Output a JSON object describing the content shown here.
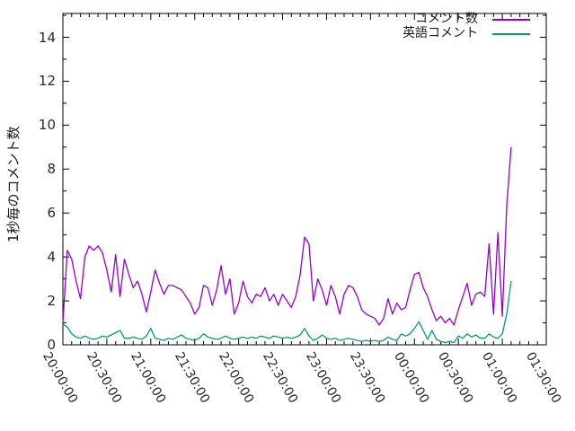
{
  "chart_data": {
    "type": "line",
    "title": "",
    "xlabel": "",
    "ylabel": "1秒毎のコメント数",
    "ylim": [
      0,
      15
    ],
    "yticks": [
      0,
      2,
      4,
      6,
      8,
      10,
      12,
      14
    ],
    "xtick_labels": [
      "20:00:00",
      "20:30:00",
      "21:00:00",
      "21:30:00",
      "22:00:00",
      "22:30:00",
      "23:00:00",
      "23:30:00",
      "00:00:00",
      "00:30:00",
      "01:00:00",
      "01:30:00"
    ],
    "grid": false,
    "legend_position": "top-right-inside",
    "background_color": "#ffffff",
    "axis_color": "#000000",
    "x_start": "20:00:00",
    "x_step_minutes": 3,
    "x_times": [
      "20:00",
      "20:03",
      "20:06",
      "20:09",
      "20:12",
      "20:15",
      "20:18",
      "20:21",
      "20:24",
      "20:27",
      "20:30",
      "20:33",
      "20:36",
      "20:39",
      "20:42",
      "20:45",
      "20:48",
      "20:51",
      "20:54",
      "20:57",
      "21:00",
      "21:03",
      "21:06",
      "21:09",
      "21:12",
      "21:15",
      "21:18",
      "21:21",
      "21:24",
      "21:27",
      "21:30",
      "21:33",
      "21:36",
      "21:39",
      "21:42",
      "21:45",
      "21:48",
      "21:51",
      "21:54",
      "21:57",
      "22:00",
      "22:03",
      "22:06",
      "22:09",
      "22:12",
      "22:15",
      "22:18",
      "22:21",
      "22:24",
      "22:27",
      "22:30",
      "22:33",
      "22:36",
      "22:39",
      "22:42",
      "22:45",
      "22:48",
      "22:51",
      "22:54",
      "22:57",
      "23:00",
      "23:03",
      "23:06",
      "23:09",
      "23:12",
      "23:15",
      "23:18",
      "23:21",
      "23:24",
      "23:27",
      "23:30",
      "23:33",
      "23:36",
      "23:39",
      "23:42",
      "23:45",
      "23:48",
      "23:51",
      "23:54",
      "23:57",
      "00:00",
      "00:03",
      "00:06",
      "00:09",
      "00:12",
      "00:15",
      "00:18",
      "00:21",
      "00:24",
      "00:27",
      "00:30",
      "00:33",
      "00:36",
      "00:39",
      "00:42",
      "00:45",
      "00:48",
      "00:51",
      "00:54",
      "00:57",
      "01:00",
      "01:03",
      "01:06"
    ],
    "series": [
      {
        "name": "コメント数",
        "color": "#9400d3",
        "values": [
          1.0,
          4.3,
          3.9,
          2.9,
          2.1,
          4.0,
          4.5,
          4.3,
          4.5,
          4.2,
          3.4,
          2.4,
          4.1,
          2.2,
          3.9,
          3.2,
          2.6,
          2.9,
          2.3,
          1.5,
          2.4,
          3.4,
          2.8,
          2.3,
          2.7,
          2.7,
          2.6,
          2.5,
          2.2,
          1.9,
          1.4,
          1.7,
          2.7,
          2.6,
          1.8,
          2.5,
          3.6,
          2.3,
          3.0,
          1.4,
          1.9,
          2.9,
          2.2,
          1.9,
          2.3,
          2.2,
          2.6,
          2.0,
          2.3,
          1.8,
          2.3,
          2.0,
          1.7,
          2.2,
          3.2,
          4.9,
          4.6,
          2.0,
          3.0,
          2.5,
          1.8,
          2.7,
          2.2,
          1.4,
          2.3,
          2.7,
          2.6,
          2.2,
          1.6,
          1.4,
          1.3,
          1.2,
          0.9,
          1.2,
          2.1,
          1.4,
          1.9,
          1.6,
          1.7,
          2.5,
          3.2,
          3.3,
          2.6,
          2.2,
          1.6,
          1.1,
          1.3,
          1.0,
          1.2,
          0.9,
          1.6,
          2.2,
          2.8,
          1.8,
          2.3,
          2.4,
          2.2,
          4.6,
          1.4,
          5.1,
          1.3,
          6.3,
          9.0
        ]
      },
      {
        "name": "英語コメント",
        "color": "#009e73",
        "values": [
          0.95,
          0.8,
          0.5,
          0.35,
          0.3,
          0.4,
          0.3,
          0.25,
          0.3,
          0.4,
          0.35,
          0.45,
          0.55,
          0.65,
          0.3,
          0.3,
          0.35,
          0.3,
          0.25,
          0.4,
          0.75,
          0.3,
          0.25,
          0.2,
          0.3,
          0.25,
          0.35,
          0.45,
          0.3,
          0.25,
          0.2,
          0.3,
          0.5,
          0.35,
          0.3,
          0.25,
          0.3,
          0.4,
          0.3,
          0.25,
          0.3,
          0.35,
          0.3,
          0.35,
          0.3,
          0.4,
          0.35,
          0.3,
          0.4,
          0.35,
          0.3,
          0.35,
          0.3,
          0.35,
          0.45,
          0.75,
          0.4,
          0.2,
          0.3,
          0.45,
          0.3,
          0.25,
          0.3,
          0.2,
          0.25,
          0.3,
          0.25,
          0.2,
          0.15,
          0.2,
          0.15,
          0.2,
          0.15,
          0.2,
          0.35,
          0.25,
          0.2,
          0.5,
          0.4,
          0.5,
          0.75,
          1.05,
          0.65,
          0.25,
          0.65,
          0.25,
          0.15,
          0.1,
          0.15,
          0.1,
          0.4,
          0.3,
          0.5,
          0.35,
          0.45,
          0.3,
          0.3,
          0.5,
          0.35,
          0.3,
          0.5,
          1.4,
          2.9
        ]
      }
    ]
  }
}
